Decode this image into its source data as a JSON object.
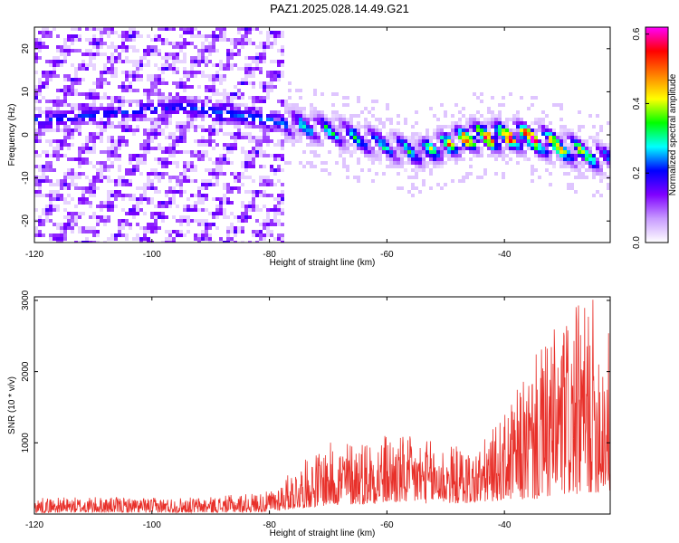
{
  "title": "PAZ1.2025.028.14.49.G21",
  "colors": {
    "snr_line": "#e8302a",
    "background": "#ffffff",
    "colormap": [
      "#ffffff",
      "#c89bff",
      "#7f00ff",
      "#0000ff",
      "#00ffff",
      "#00ff00",
      "#ffff00",
      "#ff8000",
      "#ff0000",
      "#ff00ff"
    ]
  },
  "chart_data": [
    {
      "type": "heatmap",
      "name": "spectrogram",
      "title": "PAZ1.2025.028.14.49.G21",
      "xlabel": "Height of straight line (km)",
      "ylabel": "Frequency (Hz)",
      "xlim": [
        -120,
        -22
      ],
      "ylim": [
        -25,
        25
      ],
      "x_ticks": [
        "-120",
        "-100",
        "-80",
        "-60",
        "-40"
      ],
      "x_tick_values": [
        -120,
        -100,
        -80,
        -60,
        -40
      ],
      "y_ticks": [
        "20",
        "10",
        "0",
        "-10",
        "-20"
      ],
      "y_tick_values": [
        20,
        10,
        0,
        -10,
        -20
      ],
      "colorbar": {
        "label": "Normalized spectral amplitude",
        "range": [
          0,
          0.62
        ],
        "ticks": [
          "0.0",
          "0.2",
          "0.4",
          "0.6"
        ],
        "tick_values": [
          0,
          0.2,
          0.4,
          0.6
        ]
      },
      "description_points": [
        {
          "x": -118,
          "y": 4,
          "v": 0.25
        },
        {
          "x": -95,
          "y": 7,
          "v": 0.25
        },
        {
          "x": -72,
          "y": 2,
          "v": 0.3
        },
        {
          "x": -55,
          "y": -4,
          "v": 0.3
        },
        {
          "x": -46,
          "y": 0,
          "v": 0.55
        },
        {
          "x": -37,
          "y": 0,
          "v": 0.6
        },
        {
          "x": -24,
          "y": -5,
          "v": 0.35
        }
      ]
    },
    {
      "type": "line",
      "name": "snr",
      "title": "",
      "xlabel": "Height of straight line (km)",
      "ylabel": "SNR (10 * v/v)",
      "xlim": [
        -120,
        -22
      ],
      "ylim": [
        0,
        3050
      ],
      "x_ticks": [
        "-120",
        "-100",
        "-80",
        "-60",
        "-40"
      ],
      "x_tick_values": [
        -120,
        -100,
        -80,
        -60,
        -40
      ],
      "y_ticks": [
        "3000",
        "2000",
        "1000"
      ],
      "y_tick_values": [
        3000,
        2000,
        1000
      ],
      "envelope": [
        {
          "x": -120,
          "low": 20,
          "high": 230
        },
        {
          "x": -110,
          "low": 20,
          "high": 240
        },
        {
          "x": -100,
          "low": 20,
          "high": 230
        },
        {
          "x": -90,
          "low": 20,
          "high": 240
        },
        {
          "x": -80,
          "low": 30,
          "high": 320
        },
        {
          "x": -75,
          "low": 80,
          "high": 700
        },
        {
          "x": -70,
          "low": 120,
          "high": 1000
        },
        {
          "x": -60,
          "low": 150,
          "high": 1150
        },
        {
          "x": -50,
          "low": 150,
          "high": 1000
        },
        {
          "x": -45,
          "low": 150,
          "high": 900
        },
        {
          "x": -40,
          "low": 200,
          "high": 1400
        },
        {
          "x": -35,
          "low": 200,
          "high": 2200
        },
        {
          "x": -30,
          "low": 250,
          "high": 2800
        },
        {
          "x": -25,
          "low": 300,
          "high": 3050
        },
        {
          "x": -22,
          "low": 300,
          "high": 2600
        }
      ]
    }
  ]
}
